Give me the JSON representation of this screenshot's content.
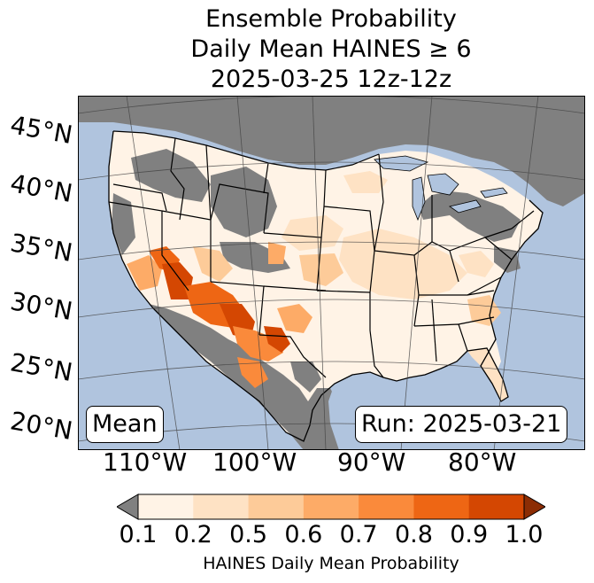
{
  "title": {
    "line1": "Ensemble Probability",
    "line2": "Daily Mean HAINES ≥ 6",
    "line3": "2025-03-25 12z-12z"
  },
  "lat_labels": [
    "45°N",
    "40°N",
    "35°N",
    "30°N",
    "25°N",
    "20°N"
  ],
  "lon_labels": [
    "110°W",
    "100°W",
    "90°W",
    "80°W"
  ],
  "annotations": {
    "left": "Mean",
    "right": "Run: 2025-03-21"
  },
  "colorbar": {
    "ticks": [
      "0.1",
      "0.2",
      "0.5",
      "0.6",
      "0.7",
      "0.8",
      "0.9",
      "1.0"
    ],
    "label": "HAINES Daily Mean Probability",
    "colors": [
      "#fff3e6",
      "#fee2c4",
      "#fdcb99",
      "#fdab67",
      "#fa8a3b",
      "#ee6614",
      "#d44702"
    ],
    "under_color": "#808080",
    "over_color": "#8c2d04"
  },
  "map_colors": {
    "ocean": "#b0c4de",
    "below_threshold": "#808080",
    "state_lines": "#000000",
    "graticule": "#444444"
  }
}
